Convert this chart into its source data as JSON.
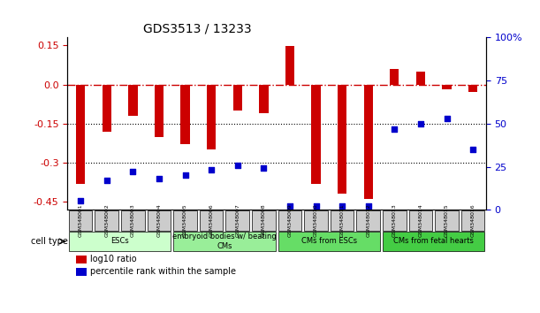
{
  "title": "GDS3513 / 13233",
  "samples": [
    "GSM348001",
    "GSM348002",
    "GSM348003",
    "GSM348004",
    "GSM348005",
    "GSM348006",
    "GSM348007",
    "GSM348008",
    "GSM348009",
    "GSM348010",
    "GSM348011",
    "GSM348012",
    "GSM348013",
    "GSM348014",
    "GSM348015",
    "GSM348016"
  ],
  "log10_ratio": [
    -0.38,
    -0.18,
    -0.12,
    -0.2,
    -0.23,
    -0.25,
    -0.1,
    -0.11,
    0.148,
    -0.38,
    -0.42,
    -0.44,
    0.06,
    0.05,
    -0.02,
    -0.03
  ],
  "percentile_rank": [
    5,
    17,
    22,
    18,
    20,
    23,
    26,
    24,
    2,
    2,
    2,
    2,
    47,
    50,
    53,
    35
  ],
  "bar_color": "#cc0000",
  "dot_color": "#0000cc",
  "cell_types": [
    {
      "label": "ESCs",
      "start": 0,
      "end": 3,
      "color": "#ccffcc"
    },
    {
      "label": "embryoid bodies w/ beating\nCMs",
      "start": 4,
      "end": 7,
      "color": "#99ee99"
    },
    {
      "label": "CMs from ESCs",
      "start": 8,
      "end": 11,
      "color": "#66dd66"
    },
    {
      "label": "CMs from fetal hearts",
      "start": 12,
      "end": 15,
      "color": "#44cc44"
    }
  ],
  "ylim_left": [
    -0.48,
    0.18
  ],
  "ylim_right": [
    0,
    100
  ],
  "yticks_left": [
    -0.45,
    -0.3,
    -0.15,
    0.0,
    0.15
  ],
  "yticks_right": [
    0,
    25,
    50,
    75,
    100
  ],
  "ytick_labels_right": [
    "0",
    "25",
    "50",
    "75",
    "100%"
  ],
  "hline_y": 0.0,
  "dotted_lines": [
    -0.15,
    -0.3
  ],
  "background_color": "#ffffff",
  "plot_bg_color": "#ffffff",
  "tick_label_bg": "#cccccc"
}
